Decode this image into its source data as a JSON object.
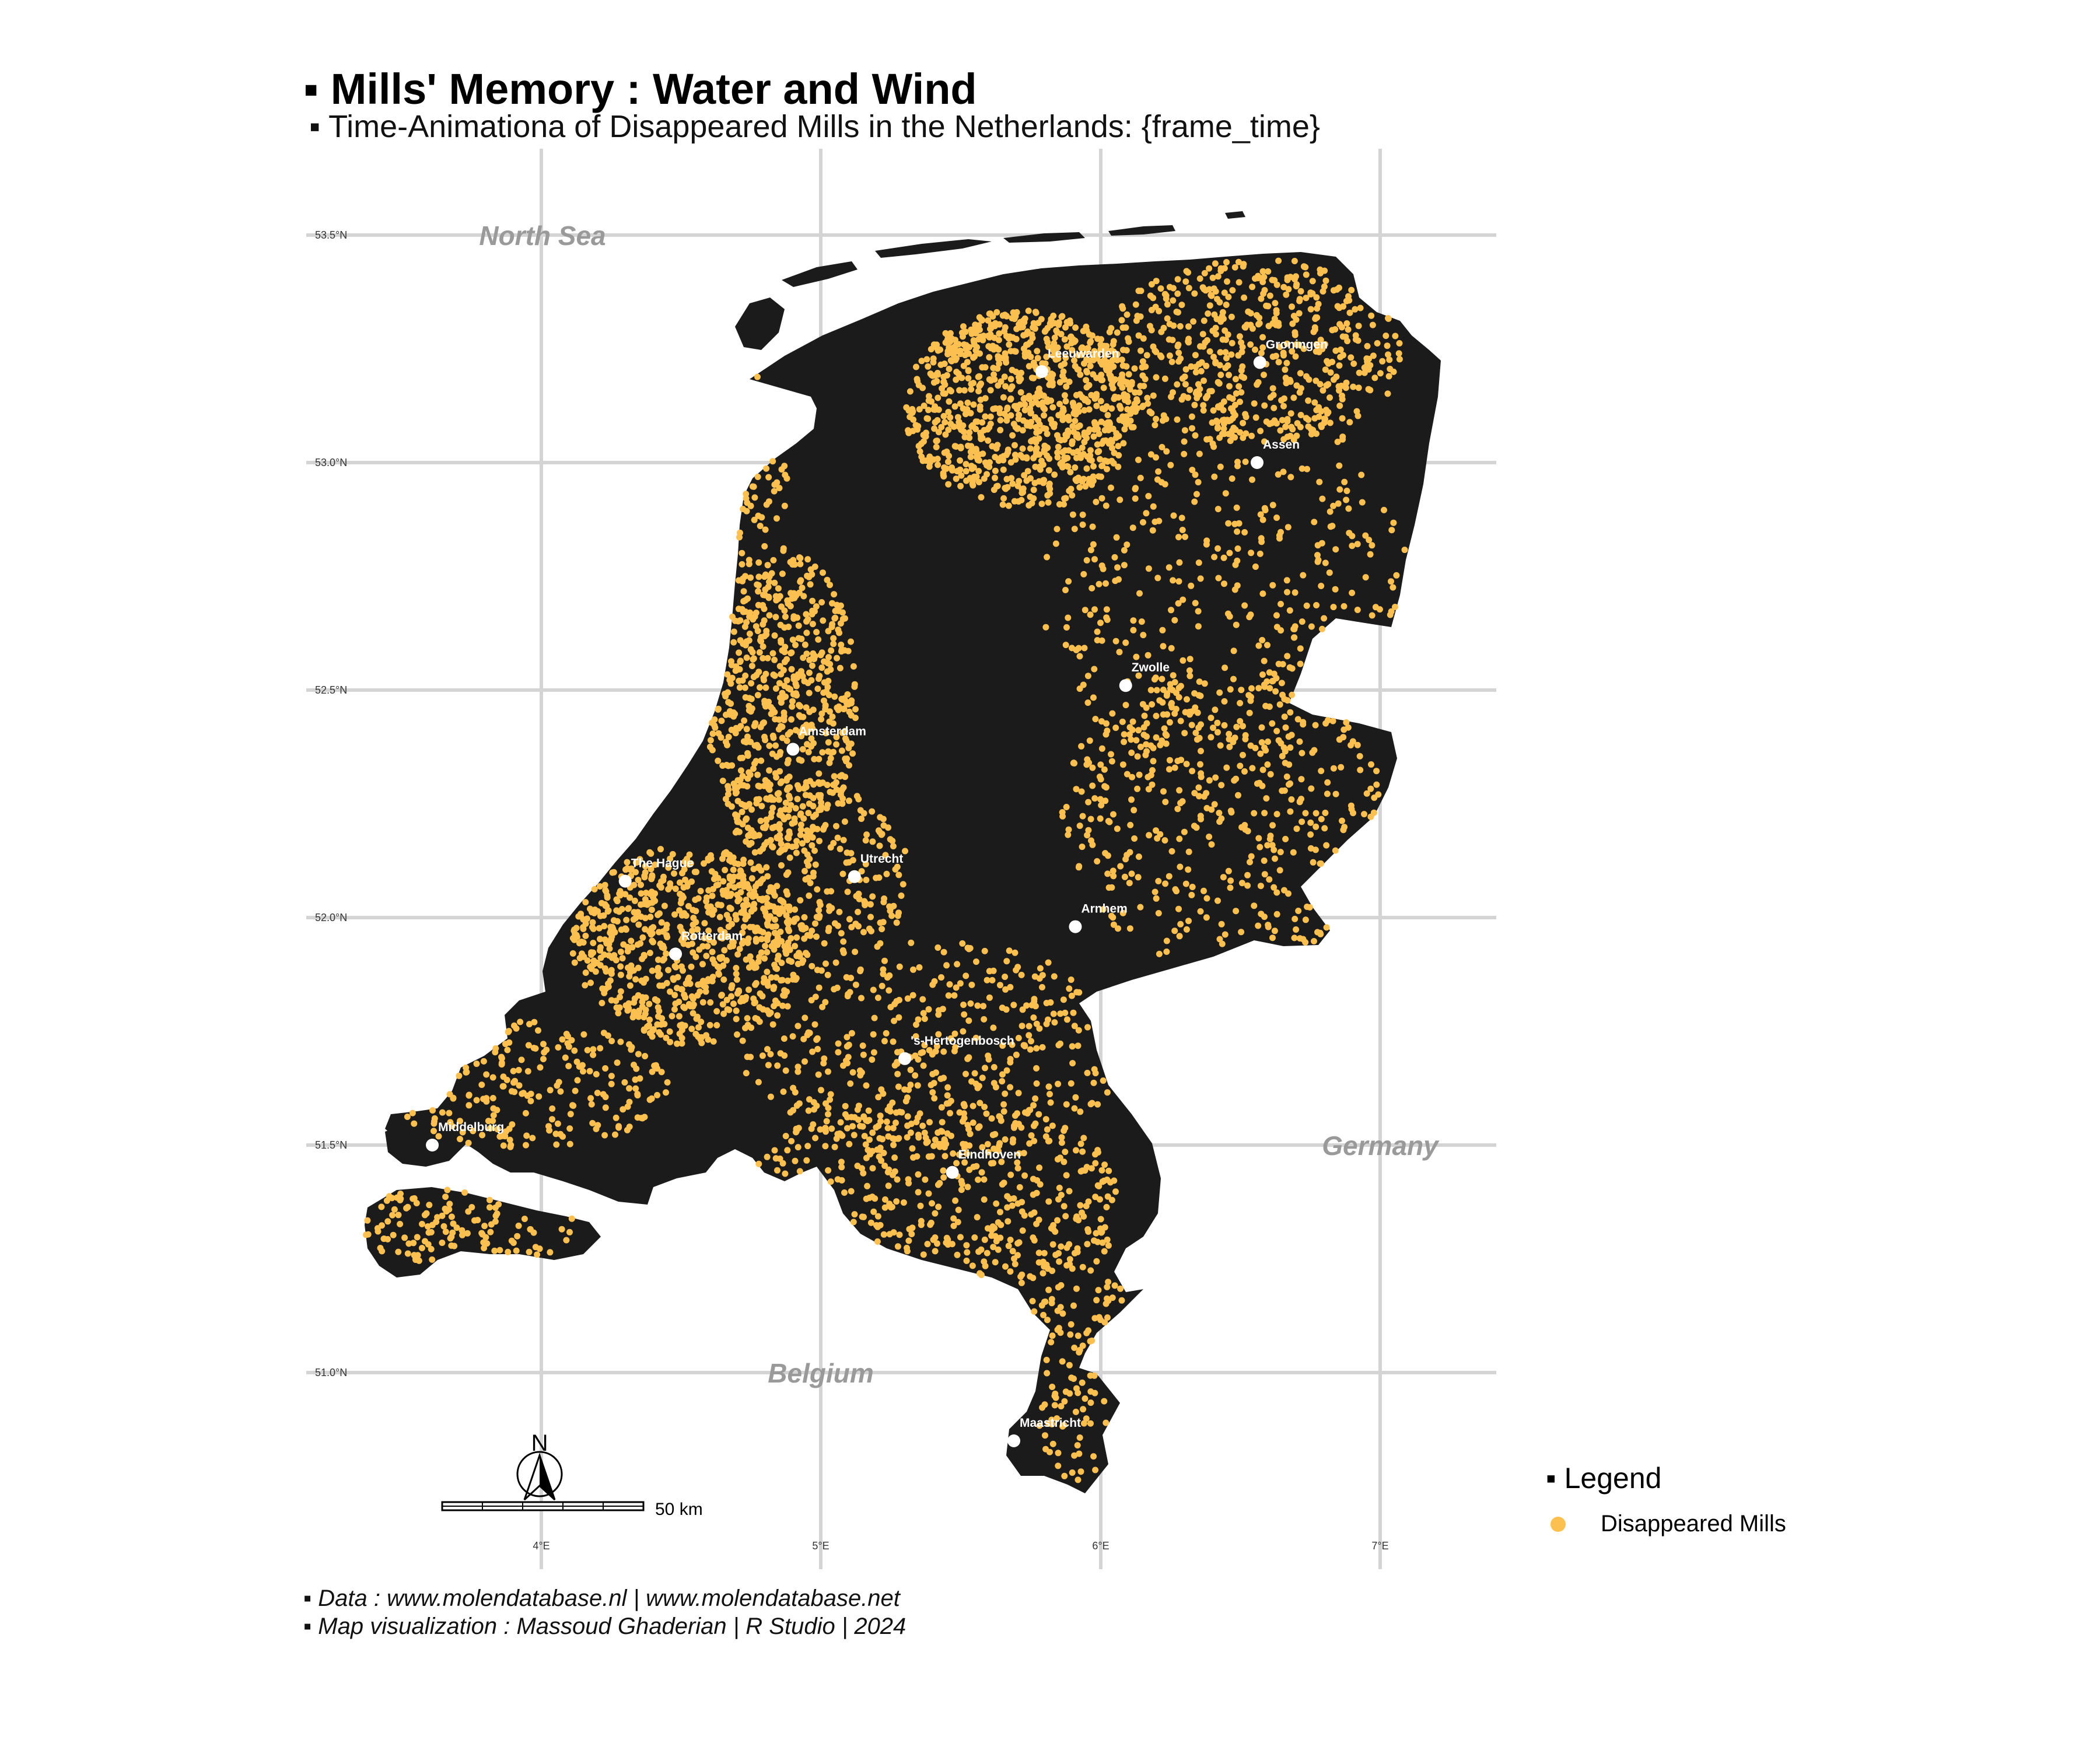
{
  "title": "▪ Mills' Memory : Water and Wind",
  "subtitle": "▪ Time-Animationa of Disappeared Mills in the Netherlands: {frame_time}",
  "colors": {
    "land": "#1b1b1b",
    "mills": "#FCC050",
    "city_marker": "#ffffff",
    "region_label": "#9a9a9a",
    "grid": "#d4d4d4",
    "background": "#ffffff"
  },
  "axes": {
    "lat_ticks": [
      "53.5°N",
      "53.0°N",
      "52.5°N",
      "52.0°N",
      "51.5°N",
      "51.0°N"
    ],
    "lon_ticks": [
      "4°E",
      "5°E",
      "6°E",
      "7°E"
    ]
  },
  "regions": [
    "North Sea",
    "Germany",
    "Belgium"
  ],
  "cities": [
    {
      "name": "Leeuwarden",
      "lon": 5.79,
      "lat": 53.2
    },
    {
      "name": "Groningen",
      "lon": 6.57,
      "lat": 53.22
    },
    {
      "name": "Assen",
      "lon": 6.56,
      "lat": 53.0
    },
    {
      "name": "Zwolle",
      "lon": 6.09,
      "lat": 52.51
    },
    {
      "name": "Amsterdam",
      "lon": 4.9,
      "lat": 52.37
    },
    {
      "name": "Utrecht",
      "lon": 5.12,
      "lat": 52.09
    },
    {
      "name": "The Hague",
      "lon": 4.3,
      "lat": 52.08
    },
    {
      "name": "Arnhem",
      "lon": 5.91,
      "lat": 51.98
    },
    {
      "name": "Rotterdam",
      "lon": 4.48,
      "lat": 51.92
    },
    {
      "name": "'s-Hertogenbosch",
      "lon": 5.3,
      "lat": 51.69
    },
    {
      "name": "Middelburg",
      "lon": 3.61,
      "lat": 51.5
    },
    {
      "name": "Eindhoven",
      "lon": 5.47,
      "lat": 51.44
    },
    {
      "name": "Maastricht",
      "lon": 5.69,
      "lat": 50.85
    }
  ],
  "north_arrow_label": "N",
  "scale_bar_label": "50 km",
  "legend": {
    "title": "▪ Legend",
    "item_label": "Disappeared Mills"
  },
  "captions": {
    "data_source": "▪ Data : www.molendatabase.nl  |  www.molendatabase.net",
    "credit": "▪ Map visualization : Massoud Ghaderian | R Studio | 2024"
  }
}
